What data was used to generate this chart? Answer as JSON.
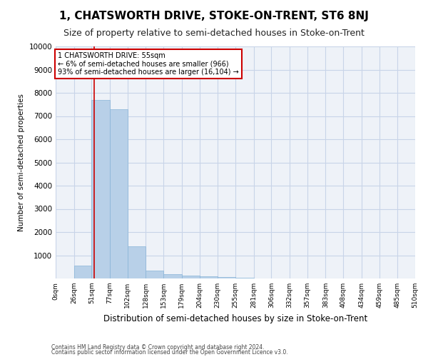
{
  "title": "1, CHATSWORTH DRIVE, STOKE-ON-TRENT, ST6 8NJ",
  "subtitle": "Size of property relative to semi-detached houses in Stoke-on-Trent",
  "xlabel": "Distribution of semi-detached houses by size in Stoke-on-Trent",
  "ylabel": "Number of semi-detached properties",
  "footer1": "Contains HM Land Registry data © Crown copyright and database right 2024.",
  "footer2": "Contains public sector information licensed under the Open Government Licence v3.0.",
  "bin_edges": [
    0,
    26,
    51,
    77,
    102,
    128,
    153,
    179,
    204,
    230,
    255,
    281,
    306,
    332,
    357,
    383,
    408,
    434,
    459,
    485,
    510
  ],
  "bin_counts": [
    0,
    550,
    7700,
    7300,
    1370,
    330,
    170,
    130,
    100,
    60,
    30,
    10,
    5,
    2,
    1,
    0,
    0,
    0,
    0,
    0
  ],
  "bar_color": "#b8d0e8",
  "bar_edge_color": "#88b4d8",
  "property_size": 55,
  "property_line_color": "#cc0000",
  "annotation_text": "1 CHATSWORTH DRIVE: 55sqm\n← 6% of semi-detached houses are smaller (966)\n93% of semi-detached houses are larger (16,104) →",
  "annotation_box_color": "#ffffff",
  "annotation_border_color": "#cc0000",
  "ylim": [
    0,
    10000
  ],
  "yticks": [
    0,
    1000,
    2000,
    3000,
    4000,
    5000,
    6000,
    7000,
    8000,
    9000,
    10000
  ],
  "grid_color": "#c8d4e8",
  "bg_color": "#eef2f8",
  "title_fontsize": 11,
  "subtitle_fontsize": 9
}
